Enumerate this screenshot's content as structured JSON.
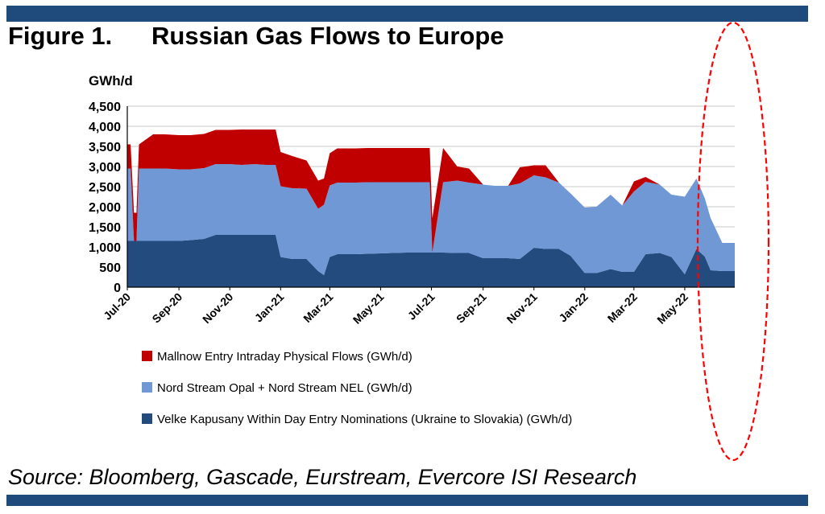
{
  "figure": {
    "number": "Figure 1.",
    "title": "Russian Gas Flows to Europe",
    "source": "Source: Bloomberg, Gascade, Eurstream, Evercore ISI Research"
  },
  "chart_data": {
    "type": "area",
    "stacked": true,
    "ylabel": "GWh/d",
    "ylim": [
      0,
      4500
    ],
    "yticks": [
      "0",
      "500",
      "1,000",
      "1,500",
      "2,000",
      "2,500",
      "3,000",
      "3,500",
      "4,000",
      "4,500"
    ],
    "x_tick_labels": [
      "Jul-20",
      "Sep-20",
      "Nov-20",
      "Jan-21",
      "Mar-21",
      "May-21",
      "Jul-21",
      "Sep-21",
      "Nov-21",
      "Jan-22",
      "Mar-22",
      "May-22"
    ],
    "grid": true,
    "legend_position": "bottom",
    "highlight": "dashed red ellipse around the latest data (June 2022)",
    "x_dates": [
      "2020-07-01",
      "2020-07-05",
      "2020-07-09",
      "2020-07-12",
      "2020-07-15",
      "2020-08-01",
      "2020-08-15",
      "2020-09-01",
      "2020-09-15",
      "2020-10-01",
      "2020-10-15",
      "2020-11-01",
      "2020-11-15",
      "2020-12-01",
      "2020-12-15",
      "2020-12-26",
      "2021-01-01",
      "2021-01-15",
      "2021-02-01",
      "2021-02-15",
      "2021-02-22",
      "2021-03-01",
      "2021-03-10",
      "2021-03-20",
      "2021-04-01",
      "2021-04-15",
      "2021-05-01",
      "2021-05-15",
      "2021-06-01",
      "2021-06-15",
      "2021-06-29",
      "2021-07-02",
      "2021-07-15",
      "2021-08-01",
      "2021-08-15",
      "2021-09-01",
      "2021-09-15",
      "2021-10-01",
      "2021-10-15",
      "2021-11-01",
      "2021-11-15",
      "2021-12-01",
      "2021-12-15",
      "2022-01-01",
      "2022-01-15",
      "2022-02-01",
      "2022-02-15",
      "2022-03-01",
      "2022-03-15",
      "2022-04-01",
      "2022-04-15",
      "2022-05-01",
      "2022-05-15",
      "2022-05-25",
      "2022-06-01",
      "2022-06-15",
      "2022-06-30"
    ],
    "series": [
      {
        "name": "Velke Kapusany Within Day Entry Nominations (Ukraine to Slovakia) (GWh/d)",
        "color": "#244b7e",
        "values": [
          1150,
          1150,
          1150,
          1150,
          1150,
          1150,
          1150,
          1150,
          1170,
          1200,
          1300,
          1300,
          1300,
          1300,
          1300,
          1300,
          750,
          700,
          700,
          400,
          300,
          750,
          820,
          820,
          820,
          830,
          840,
          850,
          860,
          860,
          860,
          860,
          860,
          850,
          850,
          720,
          720,
          720,
          700,
          980,
          950,
          950,
          780,
          350,
          350,
          450,
          380,
          380,
          820,
          850,
          750,
          320,
          950,
          760,
          420,
          400,
          400
        ]
      },
      {
        "name": "Nord Stream Opal + Nord Stream NEL (GWh/d)",
        "color": "#6f98d5",
        "values": [
          1800,
          1800,
          0,
          0,
          1800,
          1800,
          1800,
          1780,
          1760,
          1760,
          1760,
          1760,
          1740,
          1760,
          1740,
          1740,
          1760,
          1760,
          1750,
          1550,
          1750,
          1780,
          1780,
          1780,
          1780,
          1780,
          1770,
          1760,
          1750,
          1750,
          1750,
          0,
          1750,
          1800,
          1750,
          1830,
          1800,
          1800,
          1880,
          1800,
          1780,
          1650,
          1550,
          1630,
          1650,
          1850,
          1650,
          2000,
          1800,
          1700,
          1550,
          1930,
          1750,
          1450,
          1300,
          700,
          700
        ]
      },
      {
        "name": "Mallnow Entry Intraday Physical Flows (GWh/d)",
        "color": "#c00000",
        "values": [
          600,
          600,
          700,
          700,
          600,
          850,
          850,
          850,
          850,
          850,
          850,
          850,
          880,
          860,
          880,
          880,
          850,
          800,
          700,
          700,
          650,
          800,
          850,
          850,
          850,
          850,
          850,
          850,
          850,
          850,
          850,
          850,
          850,
          350,
          350,
          0,
          0,
          0,
          400,
          250,
          300,
          0,
          0,
          0,
          0,
          0,
          0,
          250,
          120,
          0,
          0,
          0,
          0,
          0,
          0,
          0,
          0
        ]
      }
    ]
  }
}
